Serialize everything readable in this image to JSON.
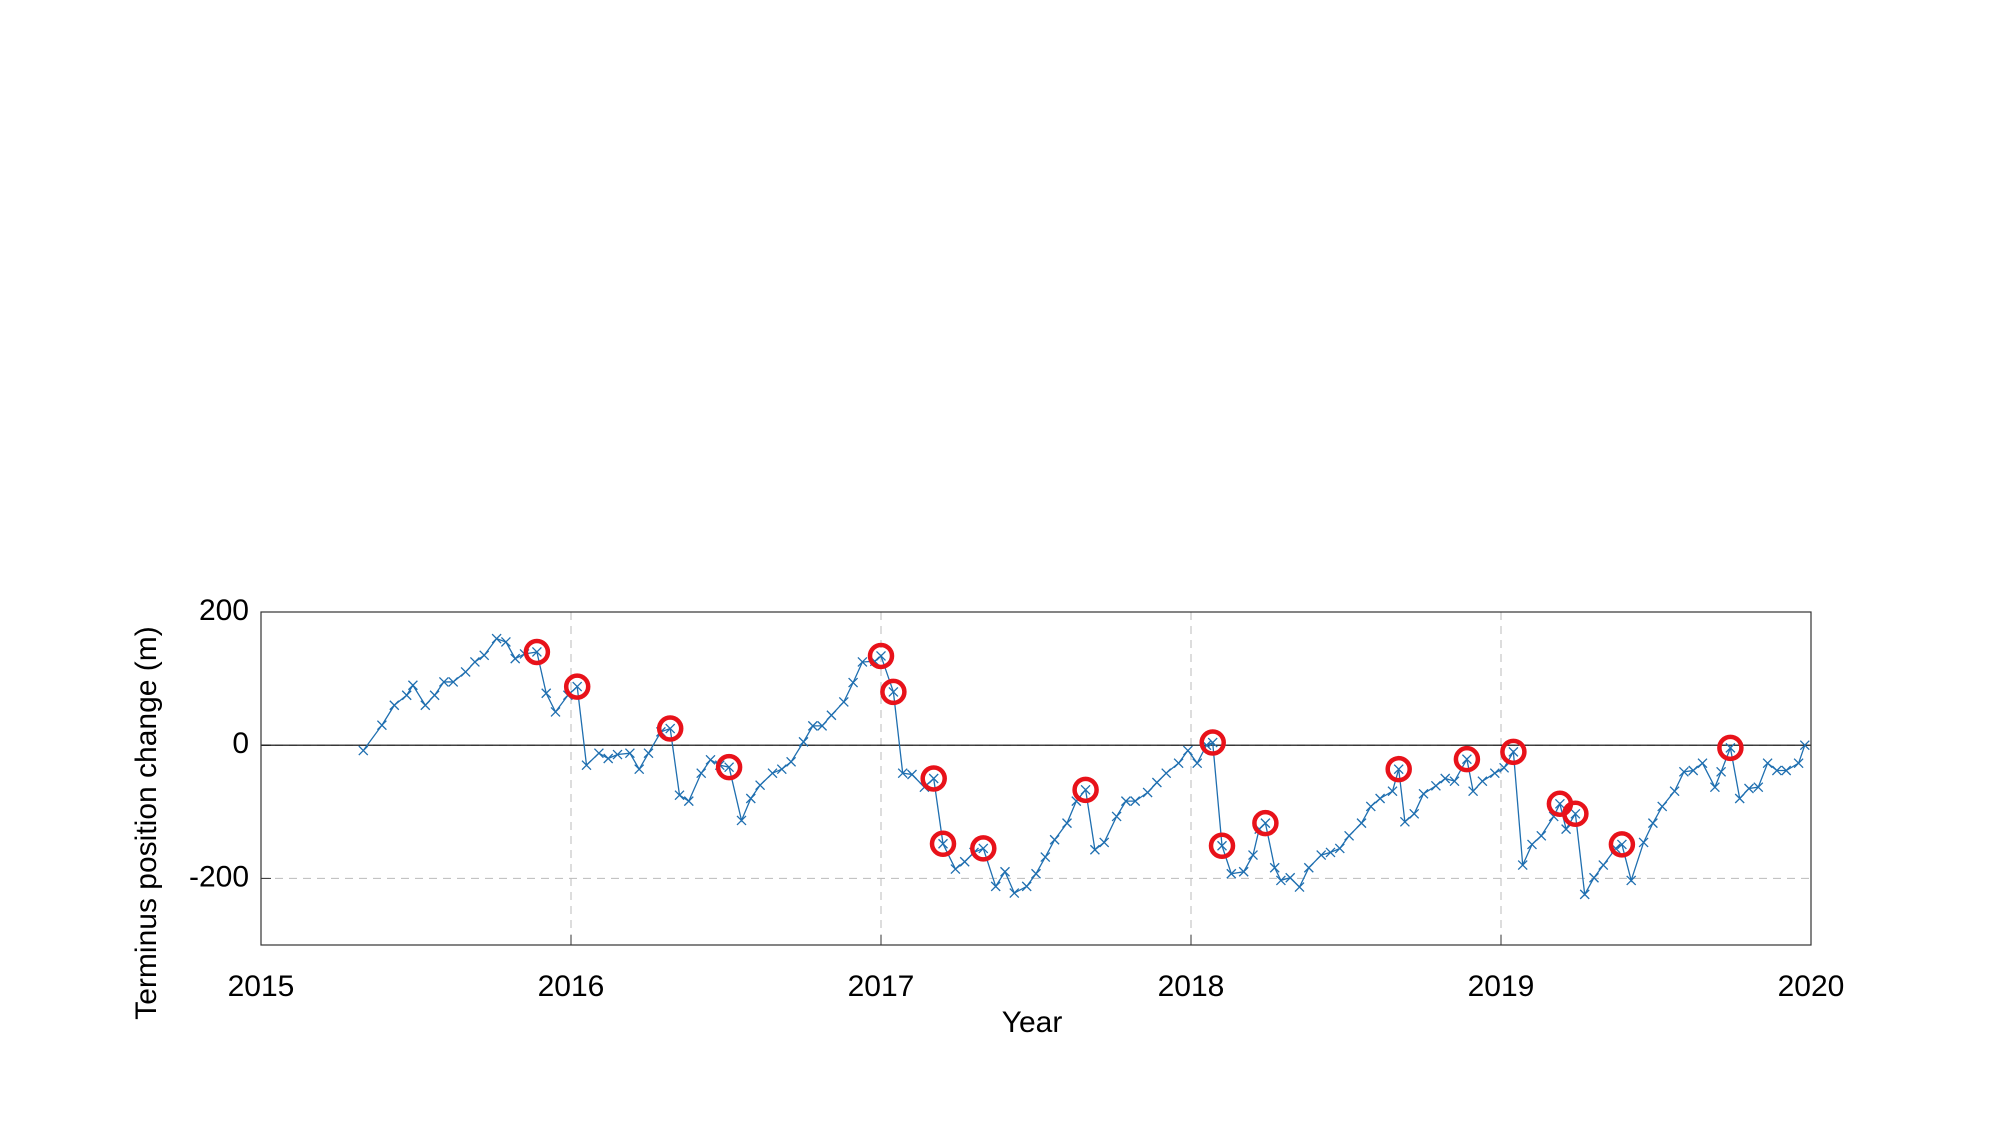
{
  "chart_data": {
    "type": "line",
    "xlabel": "Year",
    "ylabel": "Terminus position change (m)",
    "xlim": [
      2015,
      2020
    ],
    "xticks": [
      2015,
      2016,
      2017,
      2018,
      2019,
      2020
    ],
    "ylim": [
      -300,
      200
    ],
    "yticks": [
      -200,
      0,
      200
    ],
    "grid": true,
    "hline": 0,
    "series": [
      {
        "color": "#1f6fb0",
        "x": [
          2015.33,
          2015.39,
          2015.43,
          2015.47,
          2015.49,
          2015.53,
          2015.56,
          2015.59,
          2015.62,
          2015.66,
          2015.69,
          2015.72,
          2015.76,
          2015.79,
          2015.82,
          2015.85,
          2015.89,
          2015.92,
          2015.95,
          2015.99,
          2016.02,
          2016.05,
          2016.09,
          2016.12,
          2016.15,
          2016.19,
          2016.22,
          2016.25,
          2016.29,
          2016.32,
          2016.35,
          2016.38,
          2016.42,
          2016.45,
          2016.48,
          2016.51,
          2016.55,
          2016.58,
          2016.61,
          2016.65,
          2016.68,
          2016.71,
          2016.75,
          2016.78,
          2016.81,
          2016.84,
          2016.88,
          2016.91,
          2016.94,
          2016.98,
          2017.0,
          2017.04,
          2017.07,
          2017.1,
          2017.14,
          2017.17,
          2017.2,
          2017.24,
          2017.27,
          2017.3,
          2017.33,
          2017.37,
          2017.4,
          2017.43,
          2017.47,
          2017.5,
          2017.53,
          2017.56,
          2017.6,
          2017.63,
          2017.66,
          2017.69,
          2017.72,
          2017.76,
          2017.79,
          2017.82,
          2017.86,
          2017.89,
          2017.92,
          2017.96,
          2017.99,
          2018.02,
          2018.05,
          2018.07,
          2018.1,
          2018.13,
          2018.17,
          2018.2,
          2018.22,
          2018.24,
          2018.27,
          2018.29,
          2018.32,
          2018.35,
          2018.38,
          2018.42,
          2018.45,
          2018.48,
          2018.51,
          2018.55,
          2018.58,
          2018.61,
          2018.65,
          2018.67,
          2018.69,
          2018.72,
          2018.75,
          2018.79,
          2018.82,
          2018.85,
          2018.89,
          2018.91,
          2018.94,
          2018.98,
          2019.01,
          2019.04,
          2019.07,
          2019.1,
          2019.13,
          2019.17,
          2019.19,
          2019.21,
          2019.24,
          2019.27,
          2019.3,
          2019.33,
          2019.37,
          2019.39,
          2019.42,
          2019.46,
          2019.49,
          2019.52,
          2019.56,
          2019.59,
          2019.62,
          2019.65,
          2019.69,
          2019.71,
          2019.74,
          2019.77,
          2019.8,
          2019.83,
          2019.86,
          2019.89,
          2019.92,
          2019.96,
          2019.98
        ],
        "values": [
          -8,
          30,
          60,
          75,
          90,
          60,
          75,
          95,
          95,
          110,
          125,
          135,
          160,
          155,
          130,
          137,
          140,
          78,
          50,
          75,
          88,
          -30,
          -12,
          -20,
          -14,
          -12,
          -36,
          -12,
          20,
          25,
          -75,
          -84,
          -42,
          -22,
          -30,
          -33,
          -113,
          -80,
          -60,
          -42,
          -36,
          -25,
          5,
          29,
          29,
          45,
          65,
          94,
          125,
          126,
          134,
          80,
          -42,
          -44,
          -63,
          -50,
          -148,
          -186,
          -175,
          -161,
          -155,
          -212,
          -190,
          -222,
          -212,
          -193,
          -168,
          -142,
          -117,
          -84,
          -67,
          -157,
          -146,
          -107,
          -84,
          -84,
          -71,
          -56,
          -42,
          -27,
          -8,
          -27,
          0,
          4,
          -151,
          -193,
          -190,
          -165,
          -126,
          -117,
          -184,
          -203,
          -199,
          -213,
          -184,
          -165,
          -161,
          -155,
          -136,
          -117,
          -92,
          -80,
          -69,
          -36,
          -115,
          -103,
          -73,
          -61,
          -50,
          -54,
          -21,
          -69,
          -54,
          -42,
          -34,
          -10,
          -180,
          -149,
          -136,
          -107,
          -88,
          -126,
          -103,
          -224,
          -199,
          -180,
          -155,
          -149,
          -203,
          -146,
          -117,
          -92,
          -69,
          -40,
          -38,
          -27,
          -63,
          -40,
          -4,
          -80,
          -65,
          -63,
          -27,
          -38,
          -38,
          -27,
          0
        ]
      }
    ],
    "highlights": {
      "color": "#e8121a",
      "x": [
        2015.89,
        2016.02,
        2016.32,
        2016.51,
        2017.0,
        2017.04,
        2017.17,
        2017.2,
        2017.33,
        2017.66,
        2018.07,
        2018.1,
        2018.24,
        2018.67,
        2018.89,
        2019.04,
        2019.19,
        2019.24,
        2019.39,
        2019.74
      ],
      "values": [
        140,
        88,
        25,
        -33,
        134,
        80,
        -50,
        -148,
        -155,
        -67,
        4,
        -151,
        -117,
        -36,
        -21,
        -10,
        -88,
        -103,
        -149,
        -4
      ]
    }
  }
}
